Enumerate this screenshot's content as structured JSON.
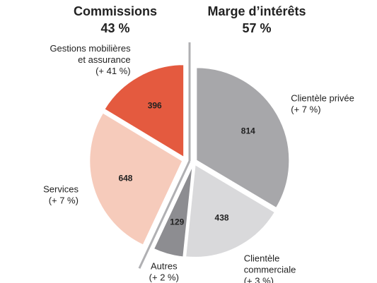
{
  "chart_data": {
    "type": "pie",
    "groups": [
      {
        "title": "Marge d’intérêts",
        "value": 57,
        "value_label": "57 %",
        "categories": [
          [
            "Clientèle privée"
          ],
          [
            "Clientèle",
            "commerciale"
          ],
          [
            "Autres"
          ]
        ],
        "values": [
          814,
          438,
          129
        ],
        "changes": [
          7,
          3,
          2
        ],
        "change_labels": [
          "(+ 7 %)",
          "(+ 3 %)",
          "(+ 2 %)"
        ],
        "colors": [
          "#a7a7aa",
          "#d9d9db",
          "#8d8d91"
        ]
      },
      {
        "title": "Commissions",
        "value": 43,
        "value_label": "43 %",
        "categories": [
          [
            "Services"
          ],
          [
            "Gestions mobilières",
            "et assurance"
          ]
        ],
        "values": [
          648,
          396
        ],
        "changes": [
          7,
          41
        ],
        "change_labels": [
          "(+ 7 %)",
          "(+ 41 %)"
        ],
        "colors": [
          "#f6cbbb",
          "#e45a3f"
        ]
      }
    ]
  }
}
